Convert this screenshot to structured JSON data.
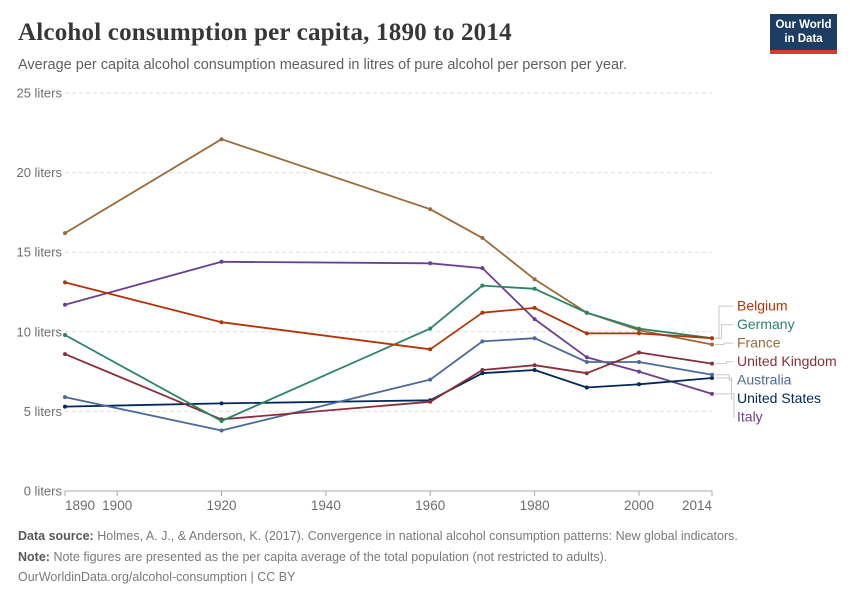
{
  "header": {
    "title": "Alcohol consumption per capita, 1890 to 2014",
    "subtitle": "Average per capita alcohol consumption measured in litres of pure alcohol per person per year.",
    "logo": {
      "line1": "Our World",
      "line2": "in Data",
      "background": "#1d3d63",
      "accent": "#d73c2c"
    }
  },
  "chart_data": {
    "type": "line",
    "title": "Alcohol consumption per capita, 1890 to 2014",
    "subtitle": "Average per capita alcohol consumption measured in litres of pure alcohol per person per year.",
    "xlabel": "",
    "ylabel": "liters",
    "x": [
      1890,
      1920,
      1960,
      1970,
      1980,
      1990,
      2000,
      2014
    ],
    "series": [
      {
        "name": "Belgium",
        "color": "#B13507",
        "values": [
          13.1,
          10.6,
          8.9,
          11.2,
          11.5,
          9.9,
          9.9,
          9.6
        ]
      },
      {
        "name": "Germany",
        "color": "#2C8465",
        "values": [
          9.8,
          4.4,
          10.2,
          12.9,
          12.7,
          11.2,
          10.2,
          9.6
        ]
      },
      {
        "name": "France",
        "color": "#996D39",
        "values": [
          16.2,
          22.1,
          17.7,
          15.9,
          13.3,
          11.2,
          10.1,
          9.2
        ]
      },
      {
        "name": "United Kingdom",
        "color": "#883039",
        "values": [
          8.6,
          4.5,
          5.6,
          7.6,
          7.9,
          7.4,
          8.7,
          8.0
        ]
      },
      {
        "name": "Australia",
        "color": "#4C6A9C",
        "values": [
          5.9,
          3.8,
          7.0,
          9.4,
          9.6,
          8.1,
          8.1,
          7.3
        ]
      },
      {
        "name": "United States",
        "color": "#00295B",
        "values": [
          5.3,
          5.5,
          5.7,
          7.4,
          7.6,
          6.5,
          6.7,
          7.1
        ]
      },
      {
        "name": "Italy",
        "color": "#6D3E91",
        "values": [
          11.7,
          14.4,
          14.3,
          14.0,
          10.8,
          8.4,
          7.5,
          6.1
        ]
      }
    ],
    "ylim": [
      0,
      25
    ],
    "ytick_labels": [
      "0 liters",
      "5 liters",
      "10 liters",
      "15 liters",
      "20 liters",
      "25 liters"
    ],
    "xticks": [
      1890,
      1900,
      1920,
      1940,
      1960,
      1980,
      2000,
      2014
    ],
    "xtick_labels": [
      "1890",
      "1900",
      "1920",
      "1940",
      "1960",
      "1980",
      "2000",
      "2014"
    ],
    "grid": "horizontal-dashed",
    "legend_position": "right",
    "colors": {
      "grid": "#dedede",
      "axis": "#a8a8a8",
      "tick_label": "#6e6e6e",
      "legend_connector": "#c9c9c9"
    }
  },
  "footer": {
    "datasource_label": "Data source:",
    "datasource_text": "Holmes, A. J., & Anderson, K. (2017). Convergence in national alcohol consumption patterns: New global indicators.",
    "note_label": "Note:",
    "note_text": "Note figures are presented as the per capita average of the total population (not restricted to adults).",
    "citation_url": "OurWorldinData.org/alcohol-consumption",
    "citation_separator": " | ",
    "citation_license": "CC BY"
  }
}
